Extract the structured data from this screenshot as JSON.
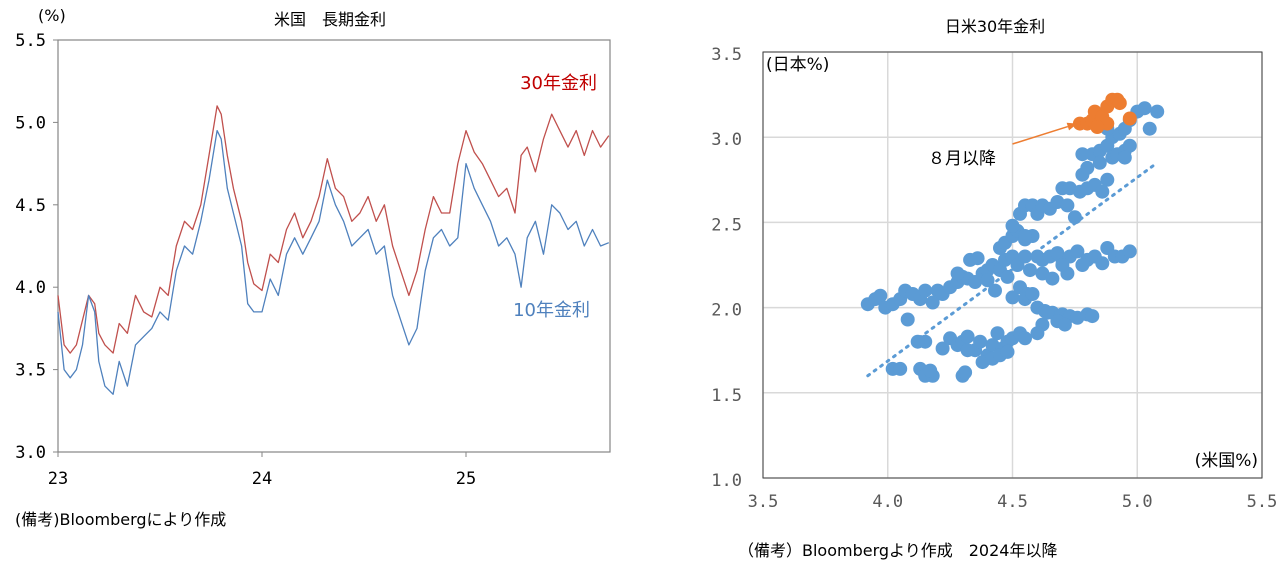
{
  "chart_data": [
    {
      "type": "line",
      "title": "米国　長期金利",
      "ylabel": "(%)",
      "xlabel": "",
      "ylim": [
        3.0,
        5.5
      ],
      "yticks": [
        "3.0",
        "3.5",
        "4.0",
        "4.5",
        "5.0",
        "5.5"
      ],
      "xlim": [
        23,
        25.7
      ],
      "xticks": [
        "23",
        "24",
        "25"
      ],
      "grid": false,
      "note": "(備考)Bloombergにより作成",
      "x": [
        23.0,
        23.03,
        23.06,
        23.09,
        23.12,
        23.15,
        23.18,
        23.2,
        23.23,
        23.27,
        23.3,
        23.34,
        23.38,
        23.42,
        23.46,
        23.5,
        23.54,
        23.58,
        23.62,
        23.66,
        23.7,
        23.74,
        23.78,
        23.8,
        23.83,
        23.86,
        23.9,
        23.93,
        23.96,
        24.0,
        24.04,
        24.08,
        24.12,
        24.16,
        24.2,
        24.24,
        24.28,
        24.32,
        24.36,
        24.4,
        24.44,
        24.48,
        24.52,
        24.56,
        24.6,
        24.64,
        24.68,
        24.72,
        24.76,
        24.8,
        24.84,
        24.88,
        24.92,
        24.96,
        25.0,
        25.04,
        25.08,
        25.12,
        25.16,
        25.2,
        25.24,
        25.27,
        25.3,
        25.34,
        25.38,
        25.42,
        25.46,
        25.5,
        25.54,
        25.58,
        25.62,
        25.66,
        25.7
      ],
      "series": [
        {
          "name": "30年金利",
          "color": "#C0504D",
          "label_color": "#C00000",
          "values": [
            3.95,
            3.65,
            3.6,
            3.65,
            3.8,
            3.95,
            3.9,
            3.72,
            3.65,
            3.6,
            3.78,
            3.72,
            3.95,
            3.85,
            3.82,
            4.0,
            3.95,
            4.25,
            4.4,
            4.35,
            4.5,
            4.8,
            5.1,
            5.05,
            4.8,
            4.6,
            4.4,
            4.15,
            4.02,
            3.98,
            4.2,
            4.15,
            4.35,
            4.45,
            4.3,
            4.4,
            4.55,
            4.78,
            4.6,
            4.55,
            4.4,
            4.45,
            4.55,
            4.4,
            4.5,
            4.25,
            4.1,
            3.95,
            4.1,
            4.35,
            4.55,
            4.45,
            4.45,
            4.75,
            4.95,
            4.82,
            4.75,
            4.65,
            4.55,
            4.6,
            4.45,
            4.8,
            4.85,
            4.7,
            4.9,
            5.05,
            4.95,
            4.85,
            4.95,
            4.8,
            4.95,
            4.85,
            4.92
          ]
        },
        {
          "name": "10年金利",
          "color": "#4F81BD",
          "label_color": "#4F81BD",
          "values": [
            3.85,
            3.5,
            3.45,
            3.5,
            3.65,
            3.95,
            3.85,
            3.55,
            3.4,
            3.35,
            3.55,
            3.4,
            3.65,
            3.7,
            3.75,
            3.85,
            3.8,
            4.1,
            4.25,
            4.2,
            4.4,
            4.65,
            4.95,
            4.9,
            4.6,
            4.45,
            4.25,
            3.9,
            3.85,
            3.85,
            4.05,
            3.95,
            4.2,
            4.3,
            4.2,
            4.3,
            4.4,
            4.65,
            4.5,
            4.4,
            4.25,
            4.3,
            4.35,
            4.2,
            4.25,
            3.95,
            3.8,
            3.65,
            3.75,
            4.1,
            4.3,
            4.35,
            4.25,
            4.3,
            4.75,
            4.6,
            4.5,
            4.4,
            4.25,
            4.3,
            4.2,
            4.0,
            4.3,
            4.4,
            4.2,
            4.5,
            4.45,
            4.35,
            4.4,
            4.25,
            4.35,
            4.25,
            4.27
          ]
        }
      ]
    },
    {
      "type": "scatter",
      "title": "日米30年金利",
      "xlabel": "(米国%)",
      "ylabel": "(日本%)",
      "xlim": [
        3.5,
        5.5
      ],
      "ylim": [
        1.0,
        3.5
      ],
      "xticks": [
        "3.5",
        "4.0",
        "4.5",
        "5.0",
        "5.5"
      ],
      "yticks": [
        "1.0",
        "1.5",
        "2.0",
        "2.5",
        "3.0",
        "3.5"
      ],
      "grid": true,
      "note": "（備考）Bloombergより作成　2024年以降",
      "annotation": {
        "text": "８月以降",
        "arrow_from": [
          4.5,
          2.96
        ],
        "arrow_to": [
          4.76,
          3.08
        ],
        "color": "#ED7D31"
      },
      "trendline": {
        "from": [
          3.92,
          1.6
        ],
        "to": [
          5.08,
          2.85
        ],
        "color": "#5B9BD5",
        "style": "dotted"
      },
      "series": [
        {
          "name": "2024年以降",
          "color": "#5B9BD5",
          "points": [
            [
              3.92,
              2.02
            ],
            [
              3.95,
              2.05
            ],
            [
              3.97,
              2.07
            ],
            [
              3.99,
              2.0
            ],
            [
              4.02,
              2.02
            ],
            [
              4.05,
              2.05
            ],
            [
              4.07,
              2.1
            ],
            [
              4.1,
              2.08
            ],
            [
              4.13,
              2.05
            ],
            [
              4.15,
              2.1
            ],
            [
              4.18,
              2.03
            ],
            [
              4.2,
              2.1
            ],
            [
              4.22,
              2.08
            ],
            [
              4.08,
              1.93
            ],
            [
              4.25,
              2.12
            ],
            [
              4.28,
              2.15
            ],
            [
              4.3,
              2.18
            ],
            [
              4.32,
              2.17
            ],
            [
              4.35,
              2.15
            ],
            [
              4.38,
              2.2
            ],
            [
              4.4,
              2.22
            ],
            [
              4.42,
              2.25
            ],
            [
              4.45,
              2.22
            ],
            [
              4.47,
              2.28
            ],
            [
              4.5,
              2.3
            ],
            [
              4.52,
              2.25
            ],
            [
              4.55,
              2.3
            ],
            [
              4.57,
              2.22
            ],
            [
              4.6,
              2.3
            ],
            [
              4.62,
              2.28
            ],
            [
              4.65,
              2.3
            ],
            [
              4.68,
              2.32
            ],
            [
              4.7,
              2.28
            ],
            [
              4.73,
              2.3
            ],
            [
              4.76,
              2.33
            ],
            [
              4.8,
              2.28
            ],
            [
              4.83,
              2.3
            ],
            [
              4.86,
              2.26
            ],
            [
              4.88,
              2.35
            ],
            [
              4.91,
              2.3
            ],
            [
              4.94,
              2.3
            ],
            [
              4.97,
              2.33
            ],
            [
              4.33,
              2.28
            ],
            [
              4.36,
              2.29
            ],
            [
              4.28,
              2.2
            ],
            [
              4.43,
              2.1
            ],
            [
              4.4,
              2.16
            ],
            [
              4.48,
              2.18
            ],
            [
              4.53,
              2.12
            ],
            [
              4.56,
              2.08
            ],
            [
              4.62,
              2.2
            ],
            [
              4.66,
              2.17
            ],
            [
              4.72,
              2.2
            ],
            [
              4.7,
              2.25
            ],
            [
              4.78,
              2.25
            ],
            [
              4.45,
              2.35
            ],
            [
              4.47,
              2.38
            ],
            [
              4.5,
              2.42
            ],
            [
              4.52,
              2.45
            ],
            [
              4.55,
              2.4
            ],
            [
              4.58,
              2.42
            ],
            [
              4.5,
              2.06
            ],
            [
              4.55,
              2.05
            ],
            [
              4.58,
              2.08
            ],
            [
              4.6,
              2.0
            ],
            [
              4.63,
              1.98
            ],
            [
              4.66,
              1.97
            ],
            [
              4.7,
              1.96
            ],
            [
              4.73,
              1.95
            ],
            [
              4.76,
              1.94
            ],
            [
              4.8,
              1.96
            ],
            [
              4.82,
              1.95
            ],
            [
              4.62,
              1.9
            ],
            [
              4.6,
              1.85
            ],
            [
              4.64,
              1.97
            ],
            [
              4.68,
              1.92
            ],
            [
              4.71,
              1.9
            ],
            [
              4.22,
              1.76
            ],
            [
              4.25,
              1.82
            ],
            [
              4.28,
              1.78
            ],
            [
              4.3,
              1.8
            ],
            [
              4.32,
              1.83
            ],
            [
              4.35,
              1.75
            ],
            [
              4.37,
              1.8
            ],
            [
              4.4,
              1.72
            ],
            [
              4.42,
              1.78
            ],
            [
              4.44,
              1.85
            ],
            [
              4.46,
              1.76
            ],
            [
              4.48,
              1.8
            ],
            [
              4.5,
              1.82
            ],
            [
              4.53,
              1.85
            ],
            [
              4.55,
              1.82
            ],
            [
              4.38,
              1.68
            ],
            [
              4.42,
              1.7
            ],
            [
              4.45,
              1.72
            ],
            [
              4.48,
              1.74
            ],
            [
              4.32,
              1.75
            ],
            [
              4.15,
              1.8
            ],
            [
              4.12,
              1.8
            ],
            [
              4.02,
              1.64
            ],
            [
              4.05,
              1.64
            ],
            [
              4.13,
              1.64
            ],
            [
              4.15,
              1.6
            ],
            [
              4.18,
              1.6
            ],
            [
              4.17,
              1.63
            ],
            [
              4.3,
              1.6
            ],
            [
              4.31,
              1.62
            ],
            [
              4.5,
              2.48
            ],
            [
              4.53,
              2.55
            ],
            [
              4.55,
              2.6
            ],
            [
              4.58,
              2.6
            ],
            [
              4.6,
              2.55
            ],
            [
              4.62,
              2.6
            ],
            [
              4.65,
              2.58
            ],
            [
              4.68,
              2.62
            ],
            [
              4.72,
              2.6
            ],
            [
              4.75,
              2.53
            ],
            [
              4.7,
              2.7
            ],
            [
              4.73,
              2.7
            ],
            [
              4.77,
              2.68
            ],
            [
              4.8,
              2.7
            ],
            [
              4.83,
              2.72
            ],
            [
              4.86,
              2.68
            ],
            [
              4.88,
              2.75
            ],
            [
              4.78,
              2.78
            ],
            [
              4.8,
              2.82
            ],
            [
              4.78,
              2.9
            ],
            [
              4.82,
              2.9
            ],
            [
              4.85,
              2.92
            ],
            [
              4.88,
              2.95
            ],
            [
              4.9,
              2.88
            ],
            [
              4.92,
              2.9
            ],
            [
              4.95,
              2.92
            ],
            [
              4.97,
              2.95
            ],
            [
              4.9,
              3.0
            ],
            [
              4.93,
              3.02
            ],
            [
              4.95,
              3.05
            ],
            [
              4.97,
              3.1
            ],
            [
              5.0,
              3.15
            ],
            [
              5.03,
              3.17
            ],
            [
              5.05,
              3.05
            ],
            [
              5.08,
              3.15
            ],
            [
              4.88,
              3.05
            ],
            [
              4.95,
              2.88
            ],
            [
              4.85,
              2.85
            ],
            [
              4.55,
              2.42
            ]
          ]
        },
        {
          "name": "８月以降",
          "color": "#ED7D31",
          "points": [
            [
              4.77,
              3.08
            ],
            [
              4.8,
              3.08
            ],
            [
              4.82,
              3.1
            ],
            [
              4.83,
              3.15
            ],
            [
              4.86,
              3.12
            ],
            [
              4.88,
              3.18
            ],
            [
              4.9,
              3.22
            ],
            [
              4.92,
              3.22
            ],
            [
              4.93,
              3.2
            ],
            [
              4.88,
              3.08
            ],
            [
              4.97,
              3.11
            ],
            [
              4.84,
              3.06
            ]
          ]
        }
      ]
    }
  ]
}
